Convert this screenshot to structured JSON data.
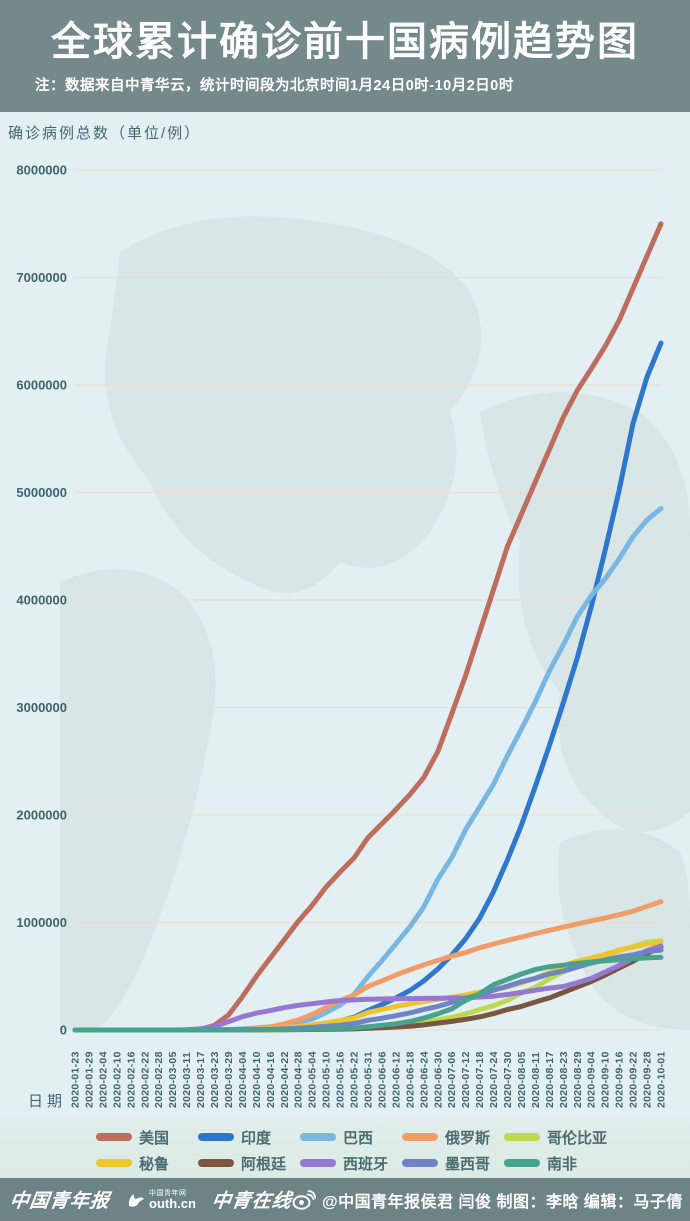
{
  "header": {
    "title": "全球累计确诊前十国病例趋势图",
    "note": "注：数据来自中青华云，统计时间段为北京时间1月24日0时-10月2日0时",
    "bg_color": "#73898B"
  },
  "chart": {
    "axis_title": "确诊病例总数（单位/例）",
    "x_axis_title": "日期",
    "bg_color": "#E2F0F3",
    "grid_color": "#F0DCD2",
    "tick_color": "#3E6469"
  },
  "chart_data": {
    "type": "line",
    "title": "全球累计确诊前十国病例趋势图",
    "xlabel": "日期",
    "ylabel": "确诊病例总数（单位/例）",
    "ylim": [
      0,
      8000000
    ],
    "y_ticks": [
      0,
      1000000,
      2000000,
      3000000,
      4000000,
      5000000,
      6000000,
      7000000,
      8000000
    ],
    "grid": true,
    "legend_position": "bottom",
    "values_unit": "millions of cases",
    "x": [
      "2020-01-23",
      "2020-01-29",
      "2020-02-04",
      "2020-02-10",
      "2020-02-16",
      "2020-02-22",
      "2020-02-28",
      "2020-03-05",
      "2020-03-11",
      "2020-03-17",
      "2020-03-23",
      "2020-03-29",
      "2020-04-04",
      "2020-04-10",
      "2020-04-16",
      "2020-04-22",
      "2020-04-28",
      "2020-05-04",
      "2020-05-10",
      "2020-05-16",
      "2020-05-22",
      "2020-05-31",
      "2020-06-06",
      "2020-06-12",
      "2020-06-18",
      "2020-06-24",
      "2020-06-30",
      "2020-07-06",
      "2020-07-12",
      "2020-07-18",
      "2020-07-24",
      "2020-07-30",
      "2020-08-05",
      "2020-08-11",
      "2020-08-17",
      "2020-08-23",
      "2020-08-29",
      "2020-09-04",
      "2020-09-10",
      "2020-09-16",
      "2020-09-22",
      "2020-09-28",
      "2020-10-01"
    ],
    "series": [
      {
        "name": "美国",
        "color": "#BE6C5C",
        "values": [
          0,
          0,
          0,
          0,
          0,
          0,
          0,
          0.0002,
          0.001,
          0.006,
          0.044,
          0.14,
          0.31,
          0.5,
          0.67,
          0.84,
          1.01,
          1.16,
          1.33,
          1.47,
          1.6,
          1.79,
          1.92,
          2.05,
          2.19,
          2.35,
          2.59,
          2.94,
          3.3,
          3.7,
          4.1,
          4.5,
          4.8,
          5.1,
          5.4,
          5.7,
          5.95,
          6.15,
          6.36,
          6.6,
          6.9,
          7.2,
          7.5
        ]
      },
      {
        "name": "印度",
        "color": "#2F77CE",
        "values": [
          0,
          0,
          0,
          0,
          0,
          0,
          0,
          0,
          0.0001,
          0.0001,
          0.0005,
          0.001,
          0.003,
          0.007,
          0.013,
          0.021,
          0.031,
          0.042,
          0.063,
          0.086,
          0.119,
          0.182,
          0.236,
          0.298,
          0.367,
          0.457,
          0.567,
          0.697,
          0.85,
          1.039,
          1.288,
          1.584,
          1.908,
          2.268,
          2.647,
          3.044,
          3.463,
          3.936,
          4.465,
          5.02,
          5.646,
          6.074,
          6.39
        ]
      },
      {
        "name": "巴西",
        "color": "#79B7E3",
        "values": [
          0,
          0,
          0,
          0,
          0,
          0,
          0,
          0.0001,
          0.0001,
          0.0003,
          0.002,
          0.004,
          0.01,
          0.019,
          0.03,
          0.045,
          0.072,
          0.101,
          0.162,
          0.233,
          0.33,
          0.499,
          0.646,
          0.802,
          0.96,
          1.145,
          1.402,
          1.603,
          1.864,
          2.074,
          2.287,
          2.553,
          2.801,
          3.057,
          3.34,
          3.582,
          3.846,
          4.041,
          4.197,
          4.382,
          4.591,
          4.745,
          4.85
        ]
      },
      {
        "name": "俄罗斯",
        "color": "#F29D67",
        "values": [
          0,
          0,
          0,
          0,
          0,
          0,
          0,
          0,
          0.0001,
          0.0001,
          0.0004,
          0.0015,
          0.004,
          0.012,
          0.028,
          0.058,
          0.093,
          0.145,
          0.21,
          0.272,
          0.326,
          0.406,
          0.458,
          0.511,
          0.561,
          0.606,
          0.647,
          0.687,
          0.72,
          0.765,
          0.8,
          0.834,
          0.865,
          0.897,
          0.927,
          0.957,
          0.987,
          1.015,
          1.042,
          1.073,
          1.105,
          1.151,
          1.194
        ]
      },
      {
        "name": "哥伦比亚",
        "color": "#BFD94F",
        "values": [
          0,
          0,
          0,
          0,
          0,
          0,
          0,
          0,
          0,
          0.0001,
          0.0002,
          0.0007,
          0.001,
          0.002,
          0.003,
          0.004,
          0.006,
          0.008,
          0.011,
          0.014,
          0.019,
          0.029,
          0.037,
          0.046,
          0.06,
          0.078,
          0.095,
          0.118,
          0.15,
          0.19,
          0.226,
          0.276,
          0.345,
          0.397,
          0.476,
          0.541,
          0.59,
          0.65,
          0.694,
          0.736,
          0.777,
          0.818,
          0.83
        ]
      },
      {
        "name": "秘鲁",
        "color": "#EDC62F",
        "values": [
          0,
          0,
          0,
          0,
          0,
          0,
          0,
          0,
          0,
          0.0001,
          0.0004,
          0.0009,
          0.002,
          0.006,
          0.012,
          0.02,
          0.032,
          0.047,
          0.067,
          0.088,
          0.111,
          0.164,
          0.191,
          0.22,
          0.244,
          0.264,
          0.285,
          0.305,
          0.326,
          0.353,
          0.375,
          0.4,
          0.439,
          0.483,
          0.535,
          0.6,
          0.639,
          0.67,
          0.702,
          0.744,
          0.772,
          0.8,
          0.815
        ]
      },
      {
        "name": "阿根廷",
        "color": "#7A5540",
        "values": [
          0,
          0,
          0,
          0,
          0,
          0,
          0,
          0,
          0,
          0.0001,
          0.0003,
          0.0007,
          0.0015,
          0.002,
          0.003,
          0.003,
          0.004,
          0.005,
          0.006,
          0.008,
          0.01,
          0.016,
          0.021,
          0.028,
          0.035,
          0.047,
          0.064,
          0.08,
          0.1,
          0.122,
          0.153,
          0.191,
          0.22,
          0.26,
          0.299,
          0.35,
          0.401,
          0.451,
          0.512,
          0.577,
          0.64,
          0.711,
          0.77
        ]
      },
      {
        "name": "西班牙",
        "color": "#9678D3",
        "values": [
          0,
          0,
          0,
          0,
          0,
          0,
          0.0001,
          0.0003,
          0.002,
          0.011,
          0.033,
          0.078,
          0.124,
          0.157,
          0.18,
          0.208,
          0.23,
          0.245,
          0.26,
          0.274,
          0.28,
          0.286,
          0.288,
          0.29,
          0.292,
          0.294,
          0.296,
          0.298,
          0.3,
          0.307,
          0.314,
          0.33,
          0.35,
          0.37,
          0.39,
          0.405,
          0.44,
          0.48,
          0.54,
          0.6,
          0.67,
          0.74,
          0.78
        ]
      },
      {
        "name": "墨西哥",
        "color": "#7083C8",
        "values": [
          0,
          0,
          0,
          0,
          0,
          0,
          0,
          0,
          0,
          0.0001,
          0.0004,
          0.001,
          0.002,
          0.004,
          0.006,
          0.01,
          0.016,
          0.024,
          0.035,
          0.045,
          0.06,
          0.09,
          0.11,
          0.133,
          0.159,
          0.191,
          0.22,
          0.256,
          0.295,
          0.331,
          0.37,
          0.408,
          0.449,
          0.48,
          0.522,
          0.55,
          0.585,
          0.623,
          0.652,
          0.68,
          0.7,
          0.73,
          0.743
        ]
      },
      {
        "name": "南非",
        "color": "#47A38D",
        "values": [
          0,
          0,
          0,
          0,
          0,
          0,
          0,
          0,
          0,
          0.0001,
          0.0004,
          0.001,
          0.002,
          0.002,
          0.003,
          0.004,
          0.005,
          0.007,
          0.01,
          0.014,
          0.019,
          0.03,
          0.045,
          0.058,
          0.08,
          0.111,
          0.151,
          0.196,
          0.276,
          0.337,
          0.421,
          0.471,
          0.521,
          0.563,
          0.589,
          0.603,
          0.62,
          0.633,
          0.644,
          0.653,
          0.663,
          0.671,
          0.676
        ]
      }
    ]
  },
  "footer": {
    "logo_cyd": "中国青年报",
    "logo_youth_main": "outh.cn",
    "logo_youth_sub": "中国青年网",
    "logo_cyol": "中青在线",
    "credit": "@中国青年报侯君 闫俊 制图：李晗 编辑：马子倩",
    "bg_color": "#6D8486"
  }
}
